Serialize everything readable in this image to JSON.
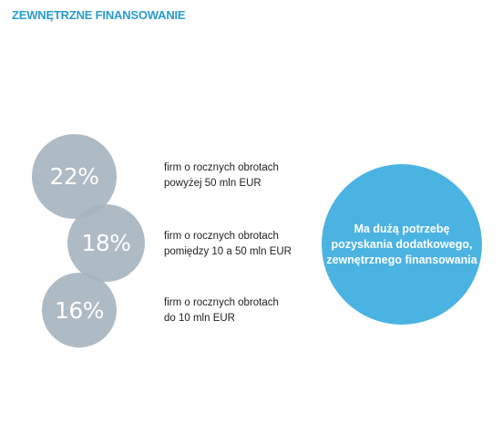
{
  "title": "ZEWNĘTRZNE FINANSOWANIE",
  "colors": {
    "title": "#2a9ccc",
    "bubble": "#a8b5bf",
    "highlight": "#4bb3e2"
  },
  "chart_data": {
    "type": "bubble",
    "categories": [
      "firm o rocznych obrotach powyżej 50 mln EUR",
      "firm o rocznych obrotach pomiędzy 10 a 50 mln EUR",
      "firm o rocznych obrotach do 10 mln EUR"
    ],
    "values": [
      22,
      18,
      16
    ],
    "unit": "%",
    "items": [
      {
        "value_label": "22%",
        "desc_line1": "firm o rocznych obrotach",
        "desc_line2": "powyżej 50 mln EUR"
      },
      {
        "value_label": "18%",
        "desc_line1": "firm o rocznych obrotach",
        "desc_line2": "pomiędzy 10 a 50 mln EUR"
      },
      {
        "value_label": "16%",
        "desc_line1": "firm o rocznych obrotach",
        "desc_line2": "do 10 mln EUR"
      }
    ],
    "highlight": {
      "line1": "Ma dużą potrzebę",
      "line2": "pozyskania dodatkowego,",
      "line3": "zewnętrznego finansowania"
    }
  }
}
